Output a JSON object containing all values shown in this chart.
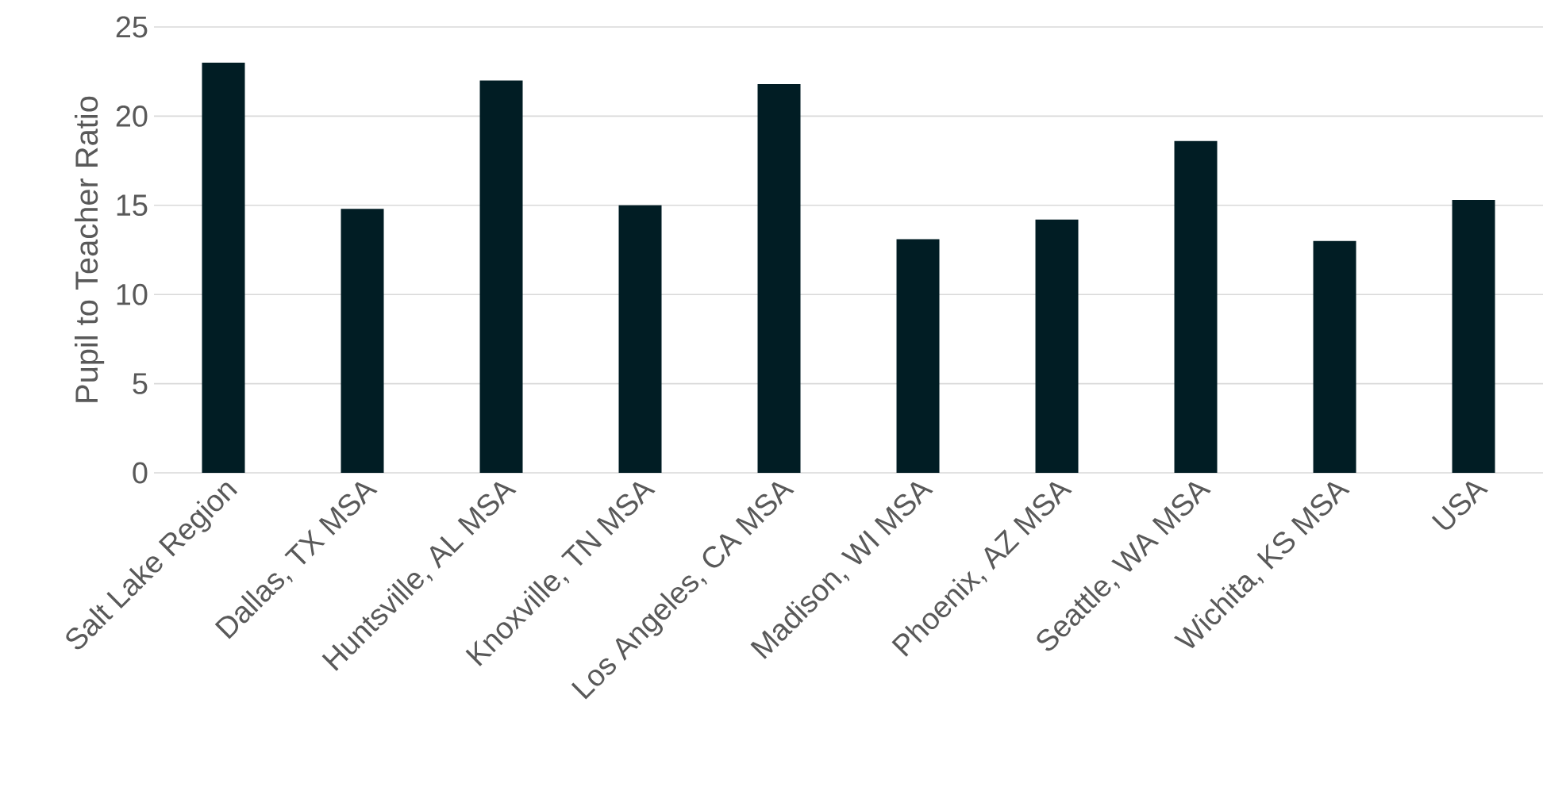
{
  "chart_data": {
    "type": "bar",
    "ylabel": "Pupil to Teacher Ratio",
    "categories": [
      "Salt Lake Region",
      "Dallas, TX MSA",
      "Huntsville, AL MSA",
      "Knoxville, TN MSA",
      "Los Angeles, CA MSA",
      "Madison, WI MSA",
      "Phoenix, AZ MSA",
      "Seattle, WA MSA",
      "Wichita, KS MSA",
      "USA"
    ],
    "values": [
      23.0,
      14.8,
      22.0,
      15.0,
      21.8,
      13.1,
      14.2,
      18.6,
      13.0,
      15.3
    ],
    "color": "#011d24",
    "ylim": [
      0,
      25
    ],
    "yticks": [
      0,
      5,
      10,
      15,
      20,
      25
    ],
    "grid": "y"
  }
}
